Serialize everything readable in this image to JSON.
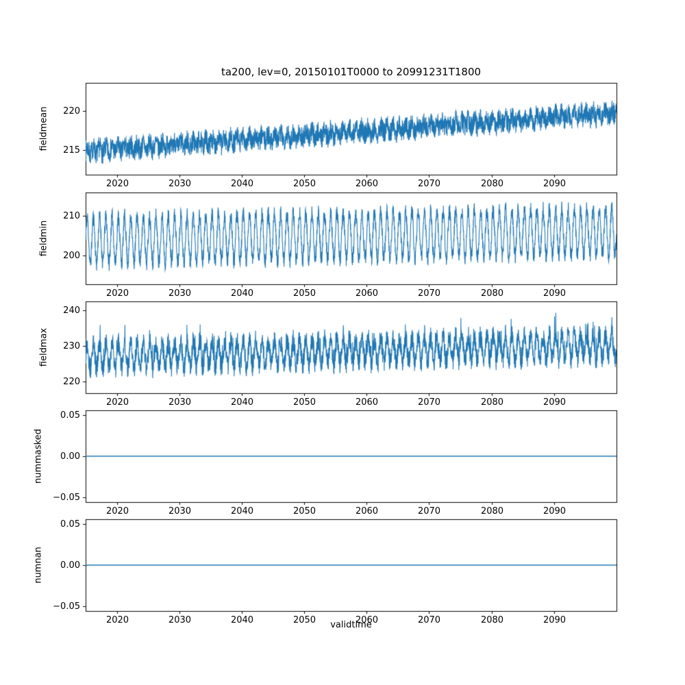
{
  "title": "ta200, lev=0, 20150101T0000 to 20991231T1800",
  "xlabel": "validtime",
  "accent_color": "#1f77b4",
  "frame_color": "#000000",
  "background_color": "#ffffff",
  "chart_data": [
    {
      "type": "line",
      "ylabel": "fieldmean",
      "title": "",
      "legend": "none",
      "grid": false,
      "x": {
        "lim": [
          2015,
          2100
        ],
        "ticks": [
          2020,
          2030,
          2040,
          2050,
          2060,
          2070,
          2080,
          2090
        ],
        "tick_labels": [
          "2020",
          "2030",
          "2040",
          "2050",
          "2060",
          "2070",
          "2080",
          "2090"
        ]
      },
      "y": {
        "lim": [
          211.8,
          223.6
        ],
        "ticks": [
          215,
          220
        ],
        "tick_labels": [
          "215",
          "220"
        ]
      },
      "approx_range": [
        212.5,
        223.3
      ],
      "series": [
        {
          "name": "fieldmean",
          "color": "#1f77b4",
          "base": 214.8,
          "trend": 5.0,
          "seasonal_amp": 0.45,
          "noise_amp": 1.35,
          "spike_amp": 0,
          "spike_prob": 0,
          "points": 3000,
          "seed": 7,
          "description": "Noisy sub-daily field mean rising steadily from about 215 in 2015 to about 220 by 2099, noise band roughly +/-1.5"
        }
      ]
    },
    {
      "type": "line",
      "ylabel": "fieldmin",
      "title": "",
      "legend": "none",
      "grid": false,
      "x": {
        "lim": [
          2015,
          2100
        ],
        "ticks": [
          2020,
          2030,
          2040,
          2050,
          2060,
          2070,
          2080,
          2090
        ],
        "tick_labels": [
          "2020",
          "2030",
          "2040",
          "2050",
          "2060",
          "2070",
          "2080",
          "2090"
        ]
      },
      "y": {
        "lim": [
          192.8,
          215.8
        ],
        "ticks": [
          200,
          210
        ],
        "tick_labels": [
          "200",
          "210"
        ]
      },
      "approx_range": [
        196,
        214
      ],
      "series": [
        {
          "name": "fieldmin",
          "color": "#1f77b4",
          "base": 203.8,
          "trend": 2.2,
          "seasonal_amp": 5.8,
          "noise_amp": 2.0,
          "spike_amp": 0,
          "spike_prob": 0,
          "points": 3000,
          "seed": 11,
          "description": "Strong annual oscillation between about 196 and 212 with slight upward trend over 2015-2099"
        }
      ]
    },
    {
      "type": "line",
      "ylabel": "fieldmax",
      "title": "",
      "legend": "none",
      "grid": false,
      "x": {
        "lim": [
          2015,
          2100
        ],
        "ticks": [
          2020,
          2030,
          2040,
          2050,
          2060,
          2070,
          2080,
          2090
        ],
        "tick_labels": [
          "2020",
          "2030",
          "2040",
          "2050",
          "2060",
          "2070",
          "2080",
          "2090"
        ]
      },
      "y": {
        "lim": [
          216.8,
          242.4
        ],
        "ticks": [
          220,
          230,
          240
        ],
        "tick_labels": [
          "220",
          "230",
          "240"
        ]
      },
      "approx_range": [
        218,
        241.5
      ],
      "series": [
        {
          "name": "fieldmax",
          "color": "#1f77b4",
          "base": 227.0,
          "trend": 3.0,
          "seasonal_amp": 3.4,
          "noise_amp": 3.0,
          "spike_amp": 5,
          "spike_prob": 0.05,
          "points": 3000,
          "seed": 13,
          "description": "Oscillation between about 219 and 238 with upward spikes reaching about 241 and slight upward trend"
        }
      ]
    },
    {
      "type": "line",
      "ylabel": "nummasked",
      "title": "",
      "legend": "none",
      "grid": false,
      "x": {
        "lim": [
          2015,
          2100
        ],
        "ticks": [
          2020,
          2030,
          2040,
          2050,
          2060,
          2070,
          2080,
          2090
        ],
        "tick_labels": [
          "2020",
          "2030",
          "2040",
          "2050",
          "2060",
          "2070",
          "2080",
          "2090"
        ]
      },
      "y": {
        "lim": [
          -0.0556,
          0.0556
        ],
        "ticks": [
          -0.05,
          0,
          0.05
        ],
        "tick_labels": [
          "−0.05",
          "0.00",
          "0.05"
        ]
      },
      "approx_range": [
        0,
        0
      ],
      "series": [
        {
          "name": "nummasked",
          "color": "#1f77b4",
          "constant": 0,
          "points": 2,
          "seed": 1,
          "description": "Constant zero masked-point count for the whole period"
        }
      ]
    },
    {
      "type": "line",
      "ylabel": "numnan",
      "title": "",
      "legend": "none",
      "grid": false,
      "x": {
        "lim": [
          2015,
          2100
        ],
        "ticks": [
          2020,
          2030,
          2040,
          2050,
          2060,
          2070,
          2080,
          2090
        ],
        "tick_labels": [
          "2020",
          "2030",
          "2040",
          "2050",
          "2060",
          "2070",
          "2080",
          "2090"
        ]
      },
      "y": {
        "lim": [
          -0.0556,
          0.0556
        ],
        "ticks": [
          -0.05,
          0,
          0.05
        ],
        "tick_labels": [
          "−0.05",
          "0.00",
          "0.05"
        ]
      },
      "approx_range": [
        0,
        0
      ],
      "series": [
        {
          "name": "numnan",
          "color": "#1f77b4",
          "constant": 0,
          "points": 2,
          "seed": 1,
          "description": "Constant zero NaN count for the whole period"
        }
      ]
    }
  ]
}
